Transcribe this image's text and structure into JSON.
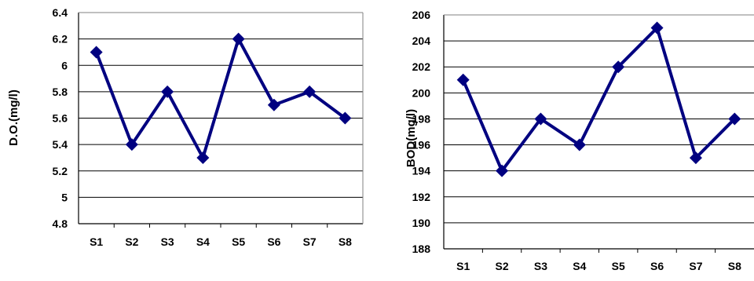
{
  "chart_data": [
    {
      "type": "line",
      "title": "",
      "xlabel": "",
      "ylabel": "D.O.(mg/l)",
      "categories": [
        "S1",
        "S2",
        "S3",
        "S4",
        "S5",
        "S6",
        "S7",
        "S8"
      ],
      "series": [
        {
          "values": [
            6.1,
            5.4,
            5.8,
            5.3,
            6.2,
            5.7,
            5.8,
            5.6
          ]
        }
      ],
      "ylim": [
        4.8,
        6.4
      ],
      "yticks": [
        "4.8",
        "5",
        "5.2",
        "5.4",
        "5.6",
        "5.8",
        "6",
        "6.2",
        "6.4"
      ],
      "grid": true,
      "marker": "diamond",
      "color": "#000080"
    },
    {
      "type": "line",
      "title": "",
      "xlabel": "",
      "ylabel": "BOD(mg/l)",
      "categories": [
        "S1",
        "S2",
        "S3",
        "S4",
        "S5",
        "S6",
        "S7",
        "S8"
      ],
      "series": [
        {
          "values": [
            201,
            194,
            198,
            196,
            202,
            205,
            195,
            198
          ]
        }
      ],
      "ylim": [
        188,
        206
      ],
      "yticks": [
        "188",
        "190",
        "192",
        "194",
        "196",
        "198",
        "200",
        "202",
        "204",
        "206"
      ],
      "grid": true,
      "marker": "diamond",
      "color": "#000080"
    }
  ]
}
